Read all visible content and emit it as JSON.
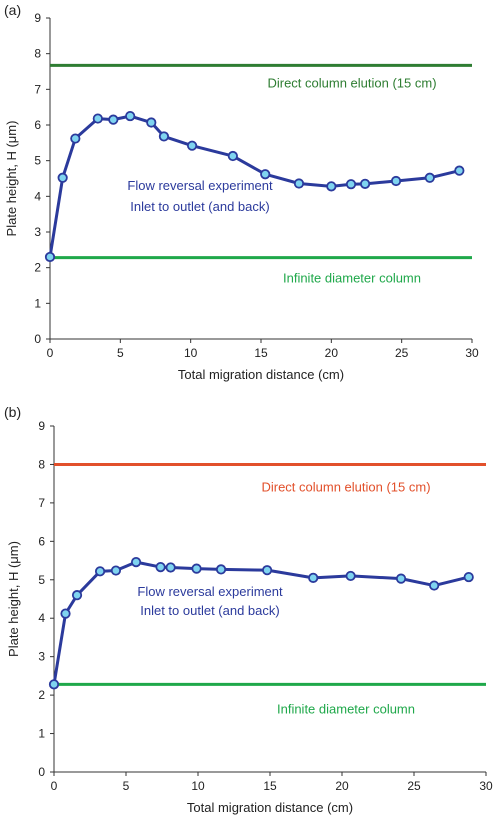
{
  "colors": {
    "series": "#2b3a9c",
    "marker_fill": "#7fd4f0",
    "axis": "#333333",
    "annotation_series": "#2b3a9c"
  },
  "chart_data": [
    {
      "panel": "(a)",
      "type": "line",
      "xlabel": "Total migration distance (cm)",
      "ylabel": "Plate height, H (μm)",
      "xlim": [
        0,
        30
      ],
      "ylim": [
        0,
        9
      ],
      "xticks": [
        "0",
        "5",
        "10",
        "15",
        "20",
        "25",
        "30"
      ],
      "yticks": [
        "0",
        "1",
        "2",
        "3",
        "4",
        "5",
        "6",
        "7",
        "8",
        "9"
      ],
      "grid": false,
      "series": [
        {
          "x": [
            0,
            0.9,
            1.8,
            3.4,
            4.5,
            5.7,
            7.2,
            8.1,
            10.1,
            13.0,
            15.3,
            17.7,
            20.0,
            21.4,
            22.4,
            24.6,
            27.0,
            29.1
          ],
          "y": [
            2.3,
            4.52,
            5.62,
            6.18,
            6.15,
            6.25,
            6.07,
            5.68,
            5.42,
            5.13,
            4.62,
            4.36,
            4.28,
            4.34,
            4.35,
            4.43,
            4.52,
            4.72
          ]
        }
      ],
      "reference_lines": [
        {
          "y": 7.67,
          "label": "Direct column elution (15 cm)",
          "color": "#2e7d32"
        },
        {
          "y": 2.28,
          "label": "Infinite diameter column",
          "color": "#1fa84a"
        }
      ],
      "annotation": [
        "Flow reversal experiment",
        "Inlet to outlet (and back)"
      ]
    },
    {
      "panel": "(b)",
      "type": "line",
      "xlabel": "Total migration distance (cm)",
      "ylabel": "Plate height, H (μm)",
      "xlim": [
        0,
        30
      ],
      "ylim": [
        0,
        9
      ],
      "xticks": [
        "0",
        "5",
        "10",
        "15",
        "20",
        "25",
        "30"
      ],
      "yticks": [
        "0",
        "1",
        "2",
        "3",
        "4",
        "5",
        "6",
        "7",
        "8",
        "9"
      ],
      "grid": false,
      "series": [
        {
          "x": [
            0,
            0.8,
            1.6,
            3.2,
            4.3,
            5.7,
            7.4,
            8.1,
            9.9,
            11.6,
            14.8,
            18.0,
            20.6,
            24.1,
            26.4,
            28.8
          ],
          "y": [
            2.28,
            4.12,
            4.6,
            5.22,
            5.24,
            5.46,
            5.33,
            5.32,
            5.29,
            5.27,
            5.25,
            5.05,
            5.1,
            5.03,
            4.85,
            5.07
          ]
        }
      ],
      "reference_lines": [
        {
          "y": 8.0,
          "label": "Direct column elution (15 cm)",
          "color": "#e2502b"
        },
        {
          "y": 2.28,
          "label": "Infinite diameter column",
          "color": "#1fa84a"
        }
      ],
      "annotation": [
        "Flow reversal experiment",
        "Inlet to outlet (and back)"
      ]
    }
  ]
}
